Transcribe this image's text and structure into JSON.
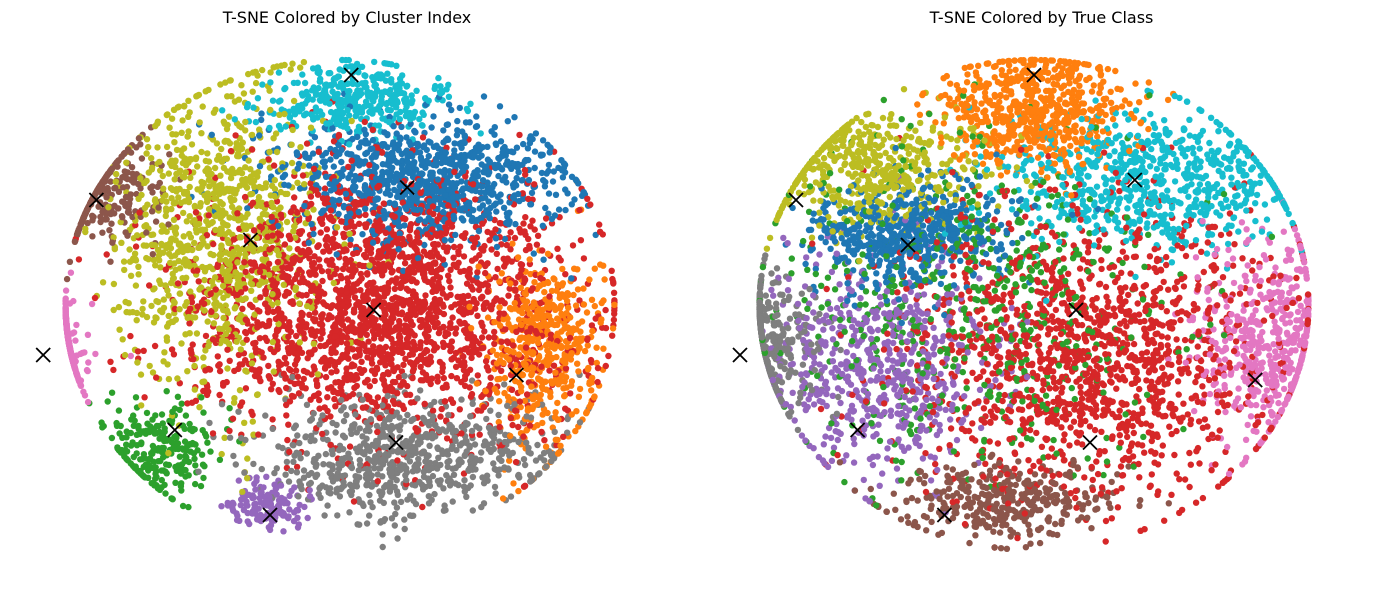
{
  "chart_data": [
    {
      "type": "scatter",
      "title": "T-SNE Colored by Cluster Index",
      "xlabel": "",
      "ylabel": "",
      "axes_visible": false,
      "grid": false,
      "legend": "none",
      "xlim": [
        -100,
        100
      ],
      "ylim": [
        -100,
        100
      ],
      "palette": [
        "#1f77b4",
        "#ff7f0e",
        "#2ca02c",
        "#d62728",
        "#9467bd",
        "#8c564b",
        "#e377c2",
        "#7f7f7f",
        "#bcbd22",
        "#17becf"
      ],
      "clusters": [
        {
          "color": "#17becf",
          "center": [
            4,
            82
          ],
          "spread": [
            16,
            7
          ],
          "points": 380
        },
        {
          "color": "#1f77b4",
          "center": [
            30,
            50
          ],
          "spread": [
            26,
            13
          ],
          "points": 900
        },
        {
          "color": "#bcbd22",
          "center": [
            -45,
            30
          ],
          "spread": [
            18,
            30
          ],
          "points": 950
        },
        {
          "color": "#8c564b",
          "center": [
            -88,
            45
          ],
          "spread": [
            13,
            10
          ],
          "points": 300
        },
        {
          "color": "#d62728",
          "center": [
            14,
            0
          ],
          "spread": [
            34,
            26
          ],
          "points": 2200
        },
        {
          "color": "#e377c2",
          "center": [
            -110,
            -18
          ],
          "spread": [
            10,
            9
          ],
          "points": 280
        },
        {
          "color": "#ff7f0e",
          "center": [
            73,
            -18
          ],
          "spread": [
            10,
            21
          ],
          "points": 460
        },
        {
          "color": "#2ca02c",
          "center": [
            -65,
            -58
          ],
          "spread": [
            10,
            9
          ],
          "points": 240
        },
        {
          "color": "#7f7f7f",
          "center": [
            25,
            -60
          ],
          "spread": [
            26,
            12
          ],
          "points": 720
        },
        {
          "color": "#9467bd",
          "center": [
            -25,
            -80
          ],
          "spread": [
            7,
            5
          ],
          "points": 140
        }
      ],
      "centroids": [
        [
          4,
          92
        ],
        [
          24,
          47
        ],
        [
          -32,
          26
        ],
        [
          -87,
          42
        ],
        [
          12,
          -2
        ],
        [
          -106,
          -20
        ],
        [
          63,
          -28
        ],
        [
          -59,
          -50
        ],
        [
          20,
          -55
        ],
        [
          -25,
          -84
        ]
      ],
      "centroid_marker": "x",
      "centroid_color": "#000000"
    },
    {
      "type": "scatter",
      "title": "T-SNE Colored by True Class",
      "xlabel": "",
      "ylabel": "",
      "axes_visible": false,
      "grid": false,
      "legend": "none",
      "xlim": [
        -100,
        100
      ],
      "ylim": [
        -100,
        100
      ],
      "palette": [
        "#1f77b4",
        "#ff7f0e",
        "#2ca02c",
        "#d62728",
        "#9467bd",
        "#8c564b",
        "#e377c2",
        "#7f7f7f",
        "#bcbd22",
        "#17becf"
      ],
      "clusters": [
        {
          "color": "#ff7f0e",
          "center": [
            0,
            78
          ],
          "spread": [
            17,
            12
          ],
          "points": 600
        },
        {
          "color": "#17becf",
          "center": [
            42,
            50
          ],
          "spread": [
            26,
            14
          ],
          "points": 700
        },
        {
          "color": "#bcbd22",
          "center": [
            -58,
            55
          ],
          "spread": [
            20,
            13
          ],
          "points": 500
        },
        {
          "color": "#1f77b4",
          "center": [
            -45,
            28
          ],
          "spread": [
            18,
            11
          ],
          "points": 550
        },
        {
          "color": "#2ca02c",
          "center": [
            -20,
            0
          ],
          "spread": [
            34,
            30
          ],
          "points": 600
        },
        {
          "color": "#7f7f7f",
          "center": [
            -100,
            -15
          ],
          "spread": [
            13,
            14
          ],
          "points": 400
        },
        {
          "color": "#9467bd",
          "center": [
            -55,
            -25
          ],
          "spread": [
            20,
            22
          ],
          "points": 600
        },
        {
          "color": "#e377c2",
          "center": [
            85,
            -15
          ],
          "spread": [
            13,
            20
          ],
          "points": 500
        },
        {
          "color": "#d62728",
          "center": [
            20,
            -20
          ],
          "spread": [
            33,
            30
          ],
          "points": 1400
        },
        {
          "color": "#8c564b",
          "center": [
            -10,
            -78
          ],
          "spread": [
            20,
            8
          ],
          "points": 350
        }
      ],
      "centroids": [
        [
          0,
          92
        ],
        [
          36,
          50
        ],
        [
          -85,
          42
        ],
        [
          -45,
          24
        ],
        [
          15,
          -2
        ],
        [
          -105,
          -20
        ],
        [
          -63,
          -50
        ],
        [
          79,
          -30
        ],
        [
          20,
          -55
        ],
        [
          -32,
          -84
        ]
      ],
      "centroid_marker": "x",
      "centroid_color": "#000000"
    }
  ]
}
